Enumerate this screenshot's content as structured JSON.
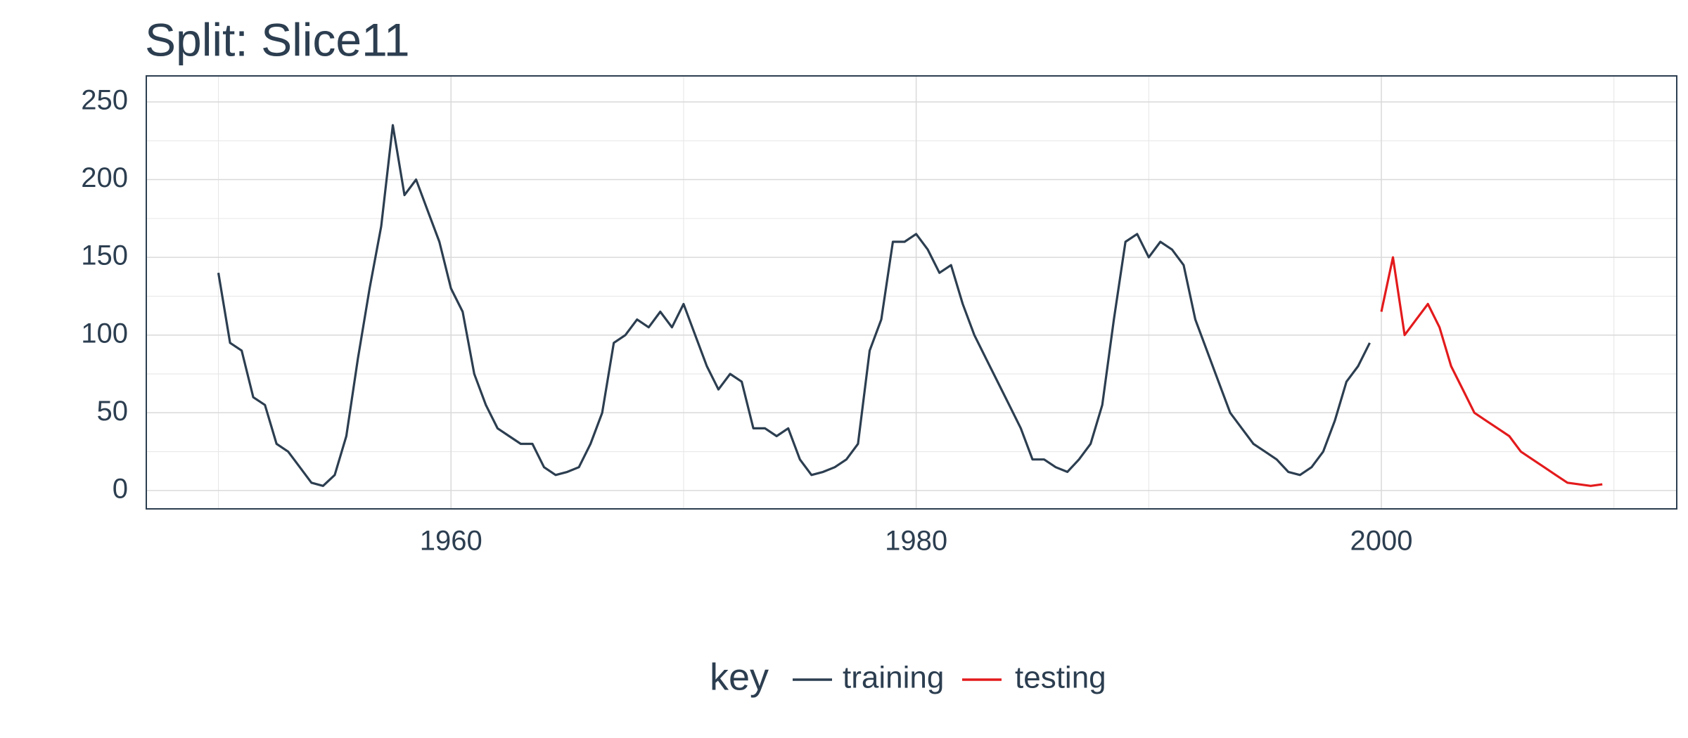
{
  "chart_data": {
    "type": "line",
    "title": "Split: Slice11",
    "x": [
      1950,
      1950.5,
      1951,
      1951.5,
      1952,
      1952.5,
      1953,
      1953.5,
      1954,
      1954.5,
      1955,
      1955.5,
      1956,
      1956.5,
      1957,
      1957.5,
      1958,
      1958.5,
      1959,
      1959.5,
      1960,
      1960.5,
      1961,
      1961.5,
      1962,
      1962.5,
      1963,
      1963.5,
      1964,
      1964.5,
      1965,
      1965.5,
      1966,
      1966.5,
      1967,
      1967.5,
      1968,
      1968.5,
      1969,
      1969.5,
      1970,
      1970.5,
      1971,
      1971.5,
      1972,
      1972.5,
      1973,
      1973.5,
      1974,
      1974.5,
      1975,
      1975.5,
      1976,
      1976.5,
      1977,
      1977.5,
      1978,
      1978.5,
      1979,
      1979.5,
      1980,
      1980.5,
      1981,
      1981.5,
      1982,
      1982.5,
      1983,
      1983.5,
      1984,
      1984.5,
      1985,
      1985.5,
      1986,
      1986.5,
      1987,
      1987.5,
      1988,
      1988.5,
      1989,
      1989.5,
      1990,
      1990.5,
      1991,
      1991.5,
      1992,
      1992.5,
      1993,
      1993.5,
      1994,
      1994.5,
      1995,
      1995.5,
      1996,
      1996.5,
      1997,
      1997.5,
      1998,
      1998.5,
      1999,
      1999.5,
      2000,
      2000.5,
      2001,
      2001.5,
      2002,
      2002.5,
      2003,
      2003.5,
      2004,
      2004.5,
      2005,
      2005.5,
      2006,
      2006.5,
      2007,
      2007.5,
      2008,
      2008.5,
      2009,
      2009.5
    ],
    "series": [
      {
        "name": "training",
        "color": "#2c3e50",
        "values": [
          140,
          95,
          90,
          60,
          55,
          30,
          25,
          15,
          5,
          3,
          10,
          35,
          85,
          130,
          170,
          235,
          190,
          200,
          180,
          160,
          130,
          115,
          75,
          55,
          40,
          35,
          30,
          30,
          15,
          10,
          12,
          15,
          30,
          50,
          95,
          100,
          110,
          105,
          115,
          105,
          120,
          100,
          80,
          65,
          75,
          70,
          40,
          40,
          35,
          40,
          20,
          10,
          12,
          15,
          20,
          30,
          90,
          110,
          160,
          160,
          165,
          155,
          140,
          145,
          120,
          100,
          85,
          70,
          55,
          40,
          20,
          20,
          15,
          12,
          20,
          30,
          55,
          110,
          160,
          165,
          150,
          160,
          155,
          145,
          110,
          90,
          70,
          50,
          40,
          30,
          25,
          20,
          12,
          10,
          15,
          25,
          45,
          70,
          80,
          95,
          null,
          null,
          null,
          null,
          null,
          null,
          null,
          null,
          null,
          null,
          null,
          null,
          null,
          null,
          null,
          null,
          null,
          null,
          null,
          null
        ]
      },
      {
        "name": "testing",
        "color": "#e31a1c",
        "values": [
          null,
          null,
          null,
          null,
          null,
          null,
          null,
          null,
          null,
          null,
          null,
          null,
          null,
          null,
          null,
          null,
          null,
          null,
          null,
          null,
          null,
          null,
          null,
          null,
          null,
          null,
          null,
          null,
          null,
          null,
          null,
          null,
          null,
          null,
          null,
          null,
          null,
          null,
          null,
          null,
          null,
          null,
          null,
          null,
          null,
          null,
          null,
          null,
          null,
          null,
          null,
          null,
          null,
          null,
          null,
          null,
          null,
          null,
          null,
          null,
          null,
          null,
          null,
          null,
          null,
          null,
          null,
          null,
          null,
          null,
          null,
          null,
          null,
          null,
          null,
          null,
          null,
          null,
          null,
          null,
          null,
          null,
          null,
          null,
          null,
          null,
          null,
          null,
          null,
          null,
          null,
          null,
          null,
          null,
          null,
          null,
          null,
          null,
          null,
          null,
          115,
          150,
          100,
          110,
          120,
          105,
          80,
          65,
          50,
          45,
          40,
          35,
          25,
          20,
          15,
          10,
          5,
          4,
          3,
          4
        ]
      }
    ],
    "xlim": [
      1946.9,
      2012.7
    ],
    "xticks": [
      1960,
      1980,
      2000
    ],
    "x_minor_ticks": [
      1950,
      1970,
      1990,
      2010
    ],
    "ylim": [
      -11.8,
      266.7
    ],
    "yticks": [
      0,
      50,
      100,
      150,
      200,
      250
    ],
    "y_minor_ticks": [
      25,
      75,
      125,
      175,
      225
    ],
    "grid": true,
    "legend_title": "key",
    "legend_position": "bottom"
  }
}
